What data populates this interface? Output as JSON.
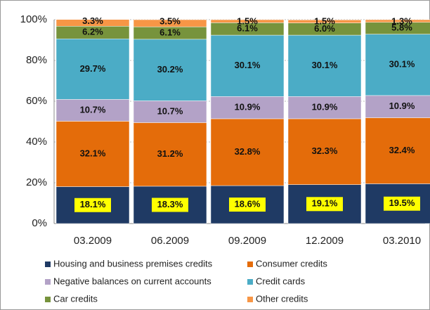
{
  "chart_data": {
    "type": "stacked_bar",
    "categories": [
      "03.2009",
      "06.2009",
      "09.2009",
      "12.2009",
      "03.2010"
    ],
    "series": [
      {
        "name": "Housing and business premises credits",
        "color": "#1f3a64",
        "values": [
          18.1,
          18.3,
          18.6,
          19.1,
          19.5
        ],
        "value_labels": [
          "18.1%",
          "18.3%",
          "18.6%",
          "19.1%",
          "19.5%"
        ]
      },
      {
        "name": "Consumer credits",
        "color": "#e46c0a",
        "values": [
          32.1,
          31.2,
          32.8,
          32.3,
          32.4
        ],
        "value_labels": [
          "32.1%",
          "31.2%",
          "32.8%",
          "32.3%",
          "32.4%"
        ]
      },
      {
        "name": "Negative balances on current accounts",
        "color": "#b3a2c7",
        "values": [
          10.7,
          10.7,
          10.9,
          10.9,
          10.9
        ],
        "value_labels": [
          "10.7%",
          "10.7%",
          "10.9%",
          "10.9%",
          "10.9%"
        ]
      },
      {
        "name": "Credit cards",
        "color": "#4bacc6",
        "values": [
          29.7,
          30.2,
          30.1,
          30.1,
          30.1
        ],
        "value_labels": [
          "29.7%",
          "30.2%",
          "30.1%",
          "30.1%",
          "30.1%"
        ]
      },
      {
        "name": "Car credits",
        "color": "#77933c",
        "values": [
          6.2,
          6.1,
          6.1,
          6.0,
          5.8
        ],
        "value_labels": [
          "6.2%",
          "6.1%",
          "6.1%",
          "6.0%",
          "5.8%"
        ]
      },
      {
        "name": "Other credits",
        "color": "#f79646",
        "values": [
          3.3,
          3.5,
          1.5,
          1.5,
          1.3
        ],
        "value_labels": [
          "3.3%",
          "3.5%",
          "1.5%",
          "1.5%",
          "1.3%"
        ]
      }
    ],
    "ylim": [
      0,
      100
    ],
    "yticks": [
      {
        "value": 0,
        "label": "0%"
      },
      {
        "value": 20,
        "label": "20%"
      },
      {
        "value": 40,
        "label": "40%"
      },
      {
        "value": 60,
        "label": "60%"
      },
      {
        "value": 80,
        "label": "80%"
      },
      {
        "value": 100,
        "label": "100%"
      }
    ],
    "grid": true
  }
}
